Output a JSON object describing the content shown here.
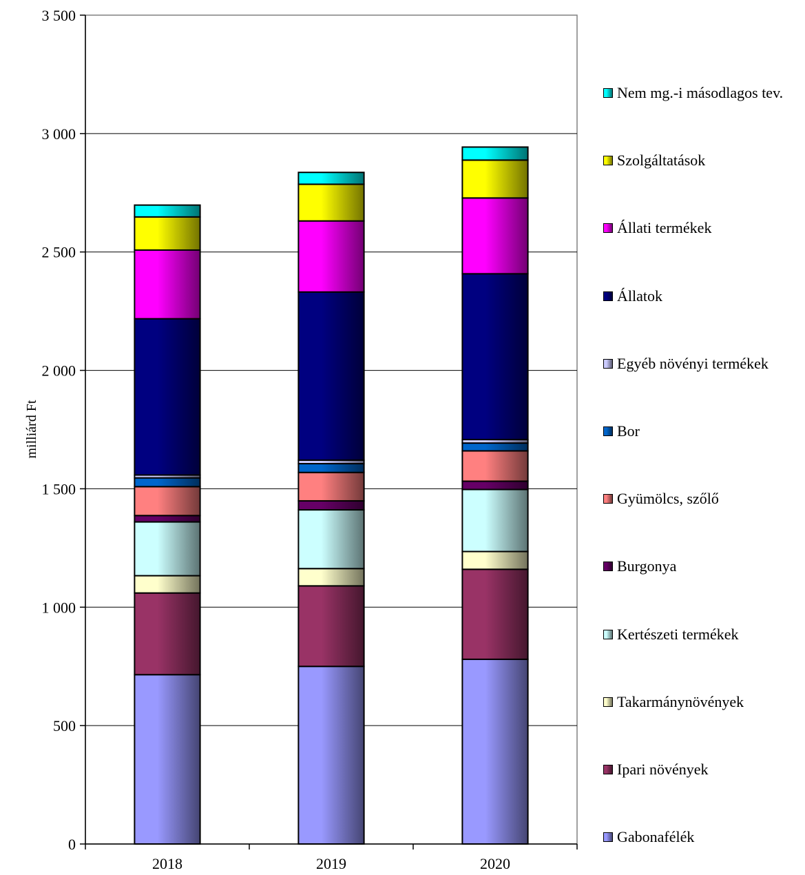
{
  "chart_data": {
    "type": "bar",
    "stacked": true,
    "ylabel": "milliárd Ft",
    "xlabel": "",
    "ylim": [
      0,
      3500
    ],
    "ytick_labels": [
      "0",
      "500",
      "1 000",
      "1 500",
      "2 000",
      "2 500",
      "3 000",
      "3 500"
    ],
    "grid": true,
    "legend_position": "right",
    "categories": [
      "2018",
      "2019",
      "2020"
    ],
    "series": [
      {
        "name": "Gabonafélék",
        "color": "#9999ff",
        "values": [
          715,
          750,
          780
        ]
      },
      {
        "name": "Ipari növények",
        "color": "#993366",
        "values": [
          345,
          340,
          380
        ]
      },
      {
        "name": "Takarmánynövények",
        "color": "#ffffcc",
        "values": [
          73,
          73,
          75
        ]
      },
      {
        "name": "Kertészeti termékek",
        "color": "#ccffff",
        "values": [
          227,
          248,
          262
        ]
      },
      {
        "name": "Burgonya",
        "color": "#660066",
        "values": [
          27,
          38,
          35
        ]
      },
      {
        "name": "Gyümölcs, szőlő",
        "color": "#ff8080",
        "values": [
          122,
          120,
          128
        ]
      },
      {
        "name": "Bor",
        "color": "#0066cc",
        "values": [
          37,
          37,
          33
        ]
      },
      {
        "name": "Egyéb növényi termékek",
        "color": "#ccccff",
        "values": [
          12,
          15,
          15
        ]
      },
      {
        "name": "Állatok",
        "color": "#000080",
        "values": [
          660,
          710,
          700
        ]
      },
      {
        "name": "Állati termékek",
        "color": "#ff00ff",
        "values": [
          290,
          300,
          320
        ]
      },
      {
        "name": "Szolgáltatások",
        "color": "#ffff00",
        "values": [
          140,
          155,
          160
        ]
      },
      {
        "name": "Nem mg.-i másodlagos tev.",
        "color": "#00ffff",
        "values": [
          50,
          50,
          55
        ]
      }
    ]
  }
}
